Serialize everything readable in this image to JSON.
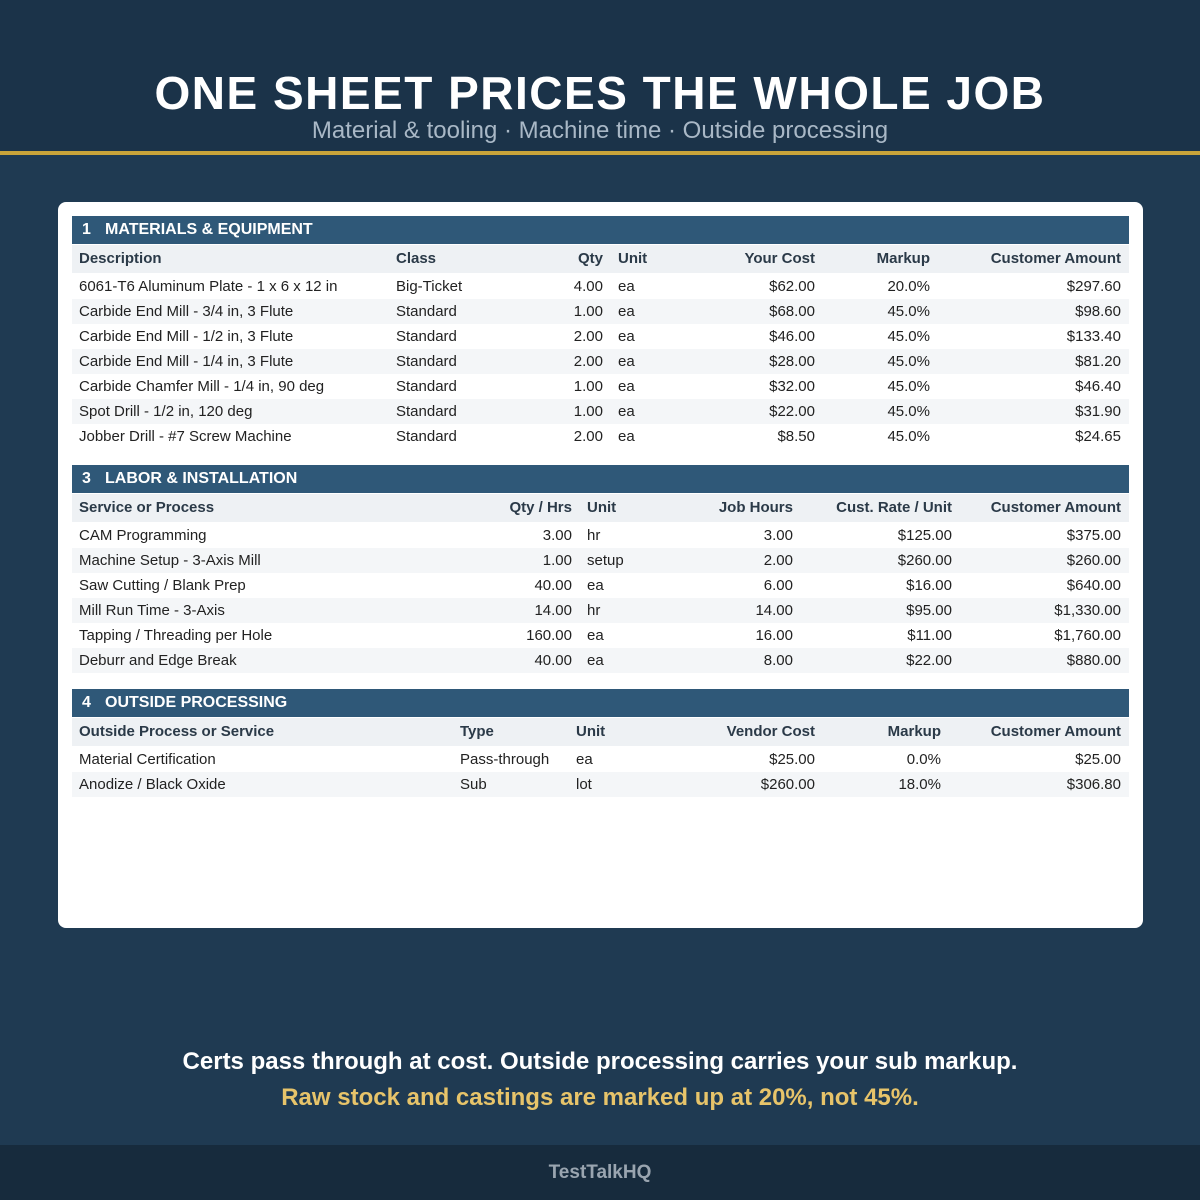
{
  "header": {
    "title": "ONE SHEET PRICES THE WHOLE JOB",
    "subtitle": "Material & tooling · Machine time · Outside processing"
  },
  "sections": [
    {
      "number": "1",
      "title": "MATERIALS & EQUIPMENT",
      "columns": [
        "Description",
        "Class",
        "Qty",
        "Unit",
        "Your Cost",
        "Markup",
        "Customer Amount"
      ],
      "rows": [
        [
          "6061-T6 Aluminum Plate - 1 x 6 x 12 in",
          "Big-Ticket",
          "4.00",
          "ea",
          "$62.00",
          "20.0%",
          "$297.60"
        ],
        [
          "Carbide End Mill - 3/4 in, 3 Flute",
          "Standard",
          "1.00",
          "ea",
          "$68.00",
          "45.0%",
          "$98.60"
        ],
        [
          "Carbide End Mill - 1/2 in, 3 Flute",
          "Standard",
          "2.00",
          "ea",
          "$46.00",
          "45.0%",
          "$133.40"
        ],
        [
          "Carbide End Mill - 1/4 in, 3 Flute",
          "Standard",
          "2.00",
          "ea",
          "$28.00",
          "45.0%",
          "$81.20"
        ],
        [
          "Carbide Chamfer Mill - 1/4 in, 90 deg",
          "Standard",
          "1.00",
          "ea",
          "$32.00",
          "45.0%",
          "$46.40"
        ],
        [
          "Spot Drill - 1/2 in, 120 deg",
          "Standard",
          "1.00",
          "ea",
          "$22.00",
          "45.0%",
          "$31.90"
        ],
        [
          "Jobber Drill - #7 Screw Machine",
          "Standard",
          "2.00",
          "ea",
          "$8.50",
          "45.0%",
          "$24.65"
        ]
      ]
    },
    {
      "number": "3",
      "title": "LABOR & INSTALLATION",
      "columns": [
        "Service or Process",
        "Qty / Hrs",
        "Unit",
        "Job Hours",
        "Cust. Rate / Unit",
        "Customer Amount"
      ],
      "rows": [
        [
          "CAM Programming",
          "3.00",
          "hr",
          "3.00",
          "$125.00",
          "$375.00"
        ],
        [
          "Machine Setup - 3-Axis Mill",
          "1.00",
          "setup",
          "2.00",
          "$260.00",
          "$260.00"
        ],
        [
          "Saw Cutting / Blank Prep",
          "40.00",
          "ea",
          "6.00",
          "$16.00",
          "$640.00"
        ],
        [
          "Mill Run Time - 3-Axis",
          "14.00",
          "hr",
          "14.00",
          "$95.00",
          "$1,330.00"
        ],
        [
          "Tapping / Threading per Hole",
          "160.00",
          "ea",
          "16.00",
          "$11.00",
          "$1,760.00"
        ],
        [
          "Deburr and Edge Break",
          "40.00",
          "ea",
          "8.00",
          "$22.00",
          "$880.00"
        ]
      ]
    },
    {
      "number": "4",
      "title": "OUTSIDE PROCESSING",
      "columns": [
        "Outside Process or Service",
        "Type",
        "Unit",
        "Vendor Cost",
        "Markup",
        "Customer Amount"
      ],
      "rows": [
        [
          "Material Certification",
          "Pass-through",
          "ea",
          "$25.00",
          "0.0%",
          "$25.00"
        ],
        [
          "Anodize / Black Oxide",
          "Sub",
          "lot",
          "$260.00",
          "18.0%",
          "$306.80"
        ]
      ]
    }
  ],
  "footer": {
    "note": "Certs pass through at cost. Outside processing carries your sub markup.",
    "highlight": "Raw stock and castings are marked up at 20%, not 45%.",
    "brand": "TestTalkHQ"
  }
}
